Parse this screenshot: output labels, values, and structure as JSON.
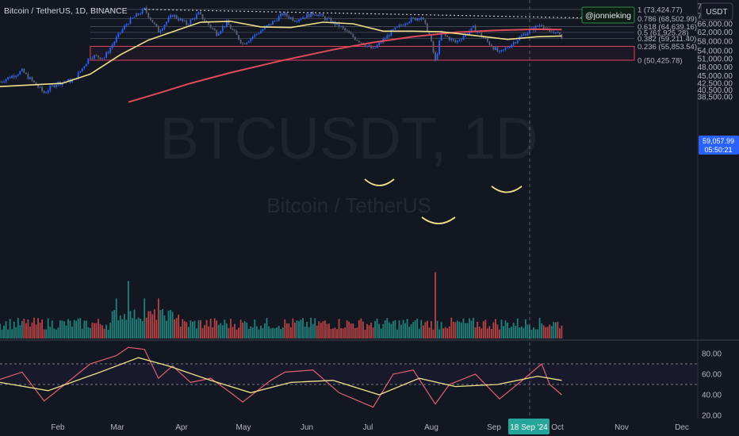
{
  "header": {
    "symbol_title": "Bitcoin / TetherUS, 1D, BINANCE",
    "author": "@jonnieking",
    "currency": "USDT"
  },
  "watermark": {
    "ticker": "BTCUSDT, 1D",
    "name": "Bitcoin / TetherUS"
  },
  "price_badge": {
    "value": "59,057.99",
    "countdown": "05:50:21"
  },
  "colors": {
    "background": "#131722",
    "candle_up": "#2962ff",
    "candle_down": "#5b6478",
    "ma_short": "#f0e08a",
    "ma_long": "#e04a5a",
    "volume_up": "#26a69a",
    "volume_down": "#ef5350",
    "fib": "#787b86",
    "support_box": "#e0405a",
    "badge": "#2962ff",
    "date_badge": "#26a69a"
  },
  "chart_data": [
    {
      "type": "candlestick",
      "title": "Bitcoin / TetherUS, 1D, BINANCE",
      "x_ticks": [
        "Feb",
        "Mar",
        "Apr",
        "May",
        "Jun",
        "Jul",
        "Aug",
        "Sep",
        "18 Sep '24",
        "Oct",
        "Nov",
        "Dec"
      ],
      "y_ticks": [
        "75,000.00",
        "70,000.00",
        "66,000.00",
        "62,000.00",
        "58,000.00",
        "54,000.00",
        "51,000.00",
        "48,000.00",
        "45,000.00",
        "42,500.00",
        "40,500.00",
        "38,500.00"
      ],
      "y_scale": "log",
      "ylim": [
        37000,
        80000
      ],
      "price_path": [
        {
          "x": "2024-01-01",
          "y": 43000
        },
        {
          "x": "2024-01-12",
          "y": 46500
        },
        {
          "x": "2024-01-23",
          "y": 39600
        },
        {
          "x": "2024-01-29",
          "y": 42500
        },
        {
          "x": "2024-02-07",
          "y": 43500
        },
        {
          "x": "2024-02-15",
          "y": 52000
        },
        {
          "x": "2024-02-22",
          "y": 51500
        },
        {
          "x": "2024-03-01",
          "y": 62000
        },
        {
          "x": "2024-03-05",
          "y": 67000
        },
        {
          "x": "2024-03-13",
          "y": 73424
        },
        {
          "x": "2024-03-20",
          "y": 62500
        },
        {
          "x": "2024-03-27",
          "y": 70500
        },
        {
          "x": "2024-04-03",
          "y": 65800
        },
        {
          "x": "2024-04-09",
          "y": 71000
        },
        {
          "x": "2024-04-18",
          "y": 61500
        },
        {
          "x": "2024-04-23",
          "y": 66500
        },
        {
          "x": "2024-05-01",
          "y": 57000
        },
        {
          "x": "2024-05-15",
          "y": 66000
        },
        {
          "x": "2024-05-21",
          "y": 71000
        },
        {
          "x": "2024-05-27",
          "y": 68000
        },
        {
          "x": "2024-06-06",
          "y": 71500
        },
        {
          "x": "2024-06-18",
          "y": 65000
        },
        {
          "x": "2024-06-24",
          "y": 60500
        },
        {
          "x": "2024-07-05",
          "y": 54500
        },
        {
          "x": "2024-07-14",
          "y": 62000
        },
        {
          "x": "2024-07-22",
          "y": 67500
        },
        {
          "x": "2024-07-29",
          "y": 69500
        },
        {
          "x": "2024-08-02",
          "y": 61000
        },
        {
          "x": "2024-08-05",
          "y": 50000
        },
        {
          "x": "2024-08-08",
          "y": 61500
        },
        {
          "x": "2024-08-15",
          "y": 57500
        },
        {
          "x": "2024-08-24",
          "y": 64000
        },
        {
          "x": "2024-09-06",
          "y": 53000
        },
        {
          "x": "2024-09-18",
          "y": 61000
        },
        {
          "x": "2024-09-27",
          "y": 66000
        },
        {
          "x": "2024-10-01",
          "y": 61500
        },
        {
          "x": "2024-10-04",
          "y": 62500
        },
        {
          "x": "2024-10-07",
          "y": 59057.99
        }
      ],
      "ma_short": [
        {
          "x": "2024-01-01",
          "y": 41500
        },
        {
          "x": "2024-02-01",
          "y": 42500
        },
        {
          "x": "2024-02-15",
          "y": 45500
        },
        {
          "x": "2024-03-01",
          "y": 52500
        },
        {
          "x": "2024-03-15",
          "y": 58500
        },
        {
          "x": "2024-04-01",
          "y": 63800
        },
        {
          "x": "2024-04-10",
          "y": 66800
        },
        {
          "x": "2024-04-25",
          "y": 67200
        },
        {
          "x": "2024-05-10",
          "y": 64500
        },
        {
          "x": "2024-05-25",
          "y": 64200
        },
        {
          "x": "2024-06-10",
          "y": 66800
        },
        {
          "x": "2024-06-25",
          "y": 66000
        },
        {
          "x": "2024-07-10",
          "y": 62500
        },
        {
          "x": "2024-07-25",
          "y": 62500
        },
        {
          "x": "2024-08-08",
          "y": 62200
        },
        {
          "x": "2024-08-25",
          "y": 60500
        },
        {
          "x": "2024-09-10",
          "y": 58800
        },
        {
          "x": "2024-09-25",
          "y": 60000
        },
        {
          "x": "2024-10-07",
          "y": 60300
        }
      ],
      "ma_long": [
        {
          "x": "2024-03-05",
          "y": 37000
        },
        {
          "x": "2024-03-20",
          "y": 39500
        },
        {
          "x": "2024-04-05",
          "y": 42500
        },
        {
          "x": "2024-04-25",
          "y": 46000
        },
        {
          "x": "2024-05-20",
          "y": 50200
        },
        {
          "x": "2024-06-15",
          "y": 54500
        },
        {
          "x": "2024-07-05",
          "y": 57500
        },
        {
          "x": "2024-07-25",
          "y": 60000
        },
        {
          "x": "2024-08-15",
          "y": 62000
        },
        {
          "x": "2024-09-05",
          "y": 62900
        },
        {
          "x": "2024-09-25",
          "y": 63400
        },
        {
          "x": "2024-10-07",
          "y": 63200
        }
      ],
      "fibonacci": [
        {
          "level": "1",
          "price": 73424.77,
          "label": "1 (73,424.77)"
        },
        {
          "level": "0.786",
          "price": 68502.99,
          "label": "0.786 (68,502.99)"
        },
        {
          "level": "0.618",
          "price": 64639.16,
          "label": "0.618 (64,639.16)"
        },
        {
          "level": "0.5",
          "price": 61925.28,
          "label": "0.5 (61,925.28)"
        },
        {
          "level": "0.382",
          "price": 59211.4,
          "label": "0.382 (59,211.40)"
        },
        {
          "level": "0.236",
          "price": 55853.54,
          "label": "0.236 (55,853.54)"
        },
        {
          "level": "0",
          "price": 50425.78,
          "label": "0 (50,425.78)"
        }
      ],
      "support_zone": {
        "from_price": 50425.78,
        "to_price": 55853.54,
        "start": "2024-02-15"
      },
      "trendline": {
        "start": {
          "x": "2024-03-13",
          "y": 73424
        },
        "end": {
          "x": "2024-10-25",
          "y": 68800
        }
      },
      "volume_scale": "relative"
    },
    {
      "type": "line",
      "title": "",
      "y_ticks": [
        "80.00",
        "60.00",
        "40.00",
        "20.00"
      ],
      "ylim": [
        18,
        88
      ],
      "rsi": [
        {
          "x": "2024-01-01",
          "y": 55
        },
        {
          "x": "2024-01-12",
          "y": 62
        },
        {
          "x": "2024-01-23",
          "y": 34
        },
        {
          "x": "2024-02-01",
          "y": 48
        },
        {
          "x": "2024-02-15",
          "y": 70
        },
        {
          "x": "2024-02-28",
          "y": 78
        },
        {
          "x": "2024-03-05",
          "y": 86
        },
        {
          "x": "2024-03-13",
          "y": 84
        },
        {
          "x": "2024-03-20",
          "y": 56
        },
        {
          "x": "2024-03-27",
          "y": 68
        },
        {
          "x": "2024-04-05",
          "y": 52
        },
        {
          "x": "2024-04-15",
          "y": 56
        },
        {
          "x": "2024-04-25",
          "y": 42
        },
        {
          "x": "2024-05-01",
          "y": 33
        },
        {
          "x": "2024-05-15",
          "y": 54
        },
        {
          "x": "2024-05-22",
          "y": 62
        },
        {
          "x": "2024-06-05",
          "y": 64
        },
        {
          "x": "2024-06-18",
          "y": 42
        },
        {
          "x": "2024-07-05",
          "y": 28
        },
        {
          "x": "2024-07-15",
          "y": 60
        },
        {
          "x": "2024-07-25",
          "y": 64
        },
        {
          "x": "2024-08-05",
          "y": 31
        },
        {
          "x": "2024-08-12",
          "y": 50
        },
        {
          "x": "2024-08-25",
          "y": 60
        },
        {
          "x": "2024-09-06",
          "y": 36
        },
        {
          "x": "2024-09-18",
          "y": 55
        },
        {
          "x": "2024-09-27",
          "y": 70
        },
        {
          "x": "2024-10-01",
          "y": 50
        },
        {
          "x": "2024-10-07",
          "y": 40
        }
      ],
      "rsi_ma": [
        {
          "x": "2024-01-01",
          "y": 52
        },
        {
          "x": "2024-01-25",
          "y": 44
        },
        {
          "x": "2024-02-20",
          "y": 62
        },
        {
          "x": "2024-03-10",
          "y": 76
        },
        {
          "x": "2024-03-25",
          "y": 68
        },
        {
          "x": "2024-04-15",
          "y": 54
        },
        {
          "x": "2024-05-05",
          "y": 42
        },
        {
          "x": "2024-05-25",
          "y": 52
        },
        {
          "x": "2024-06-15",
          "y": 54
        },
        {
          "x": "2024-07-08",
          "y": 40
        },
        {
          "x": "2024-07-28",
          "y": 56
        },
        {
          "x": "2024-08-15",
          "y": 48
        },
        {
          "x": "2024-09-05",
          "y": 50
        },
        {
          "x": "2024-09-25",
          "y": 58
        },
        {
          "x": "2024-10-07",
          "y": 54
        }
      ]
    }
  ]
}
